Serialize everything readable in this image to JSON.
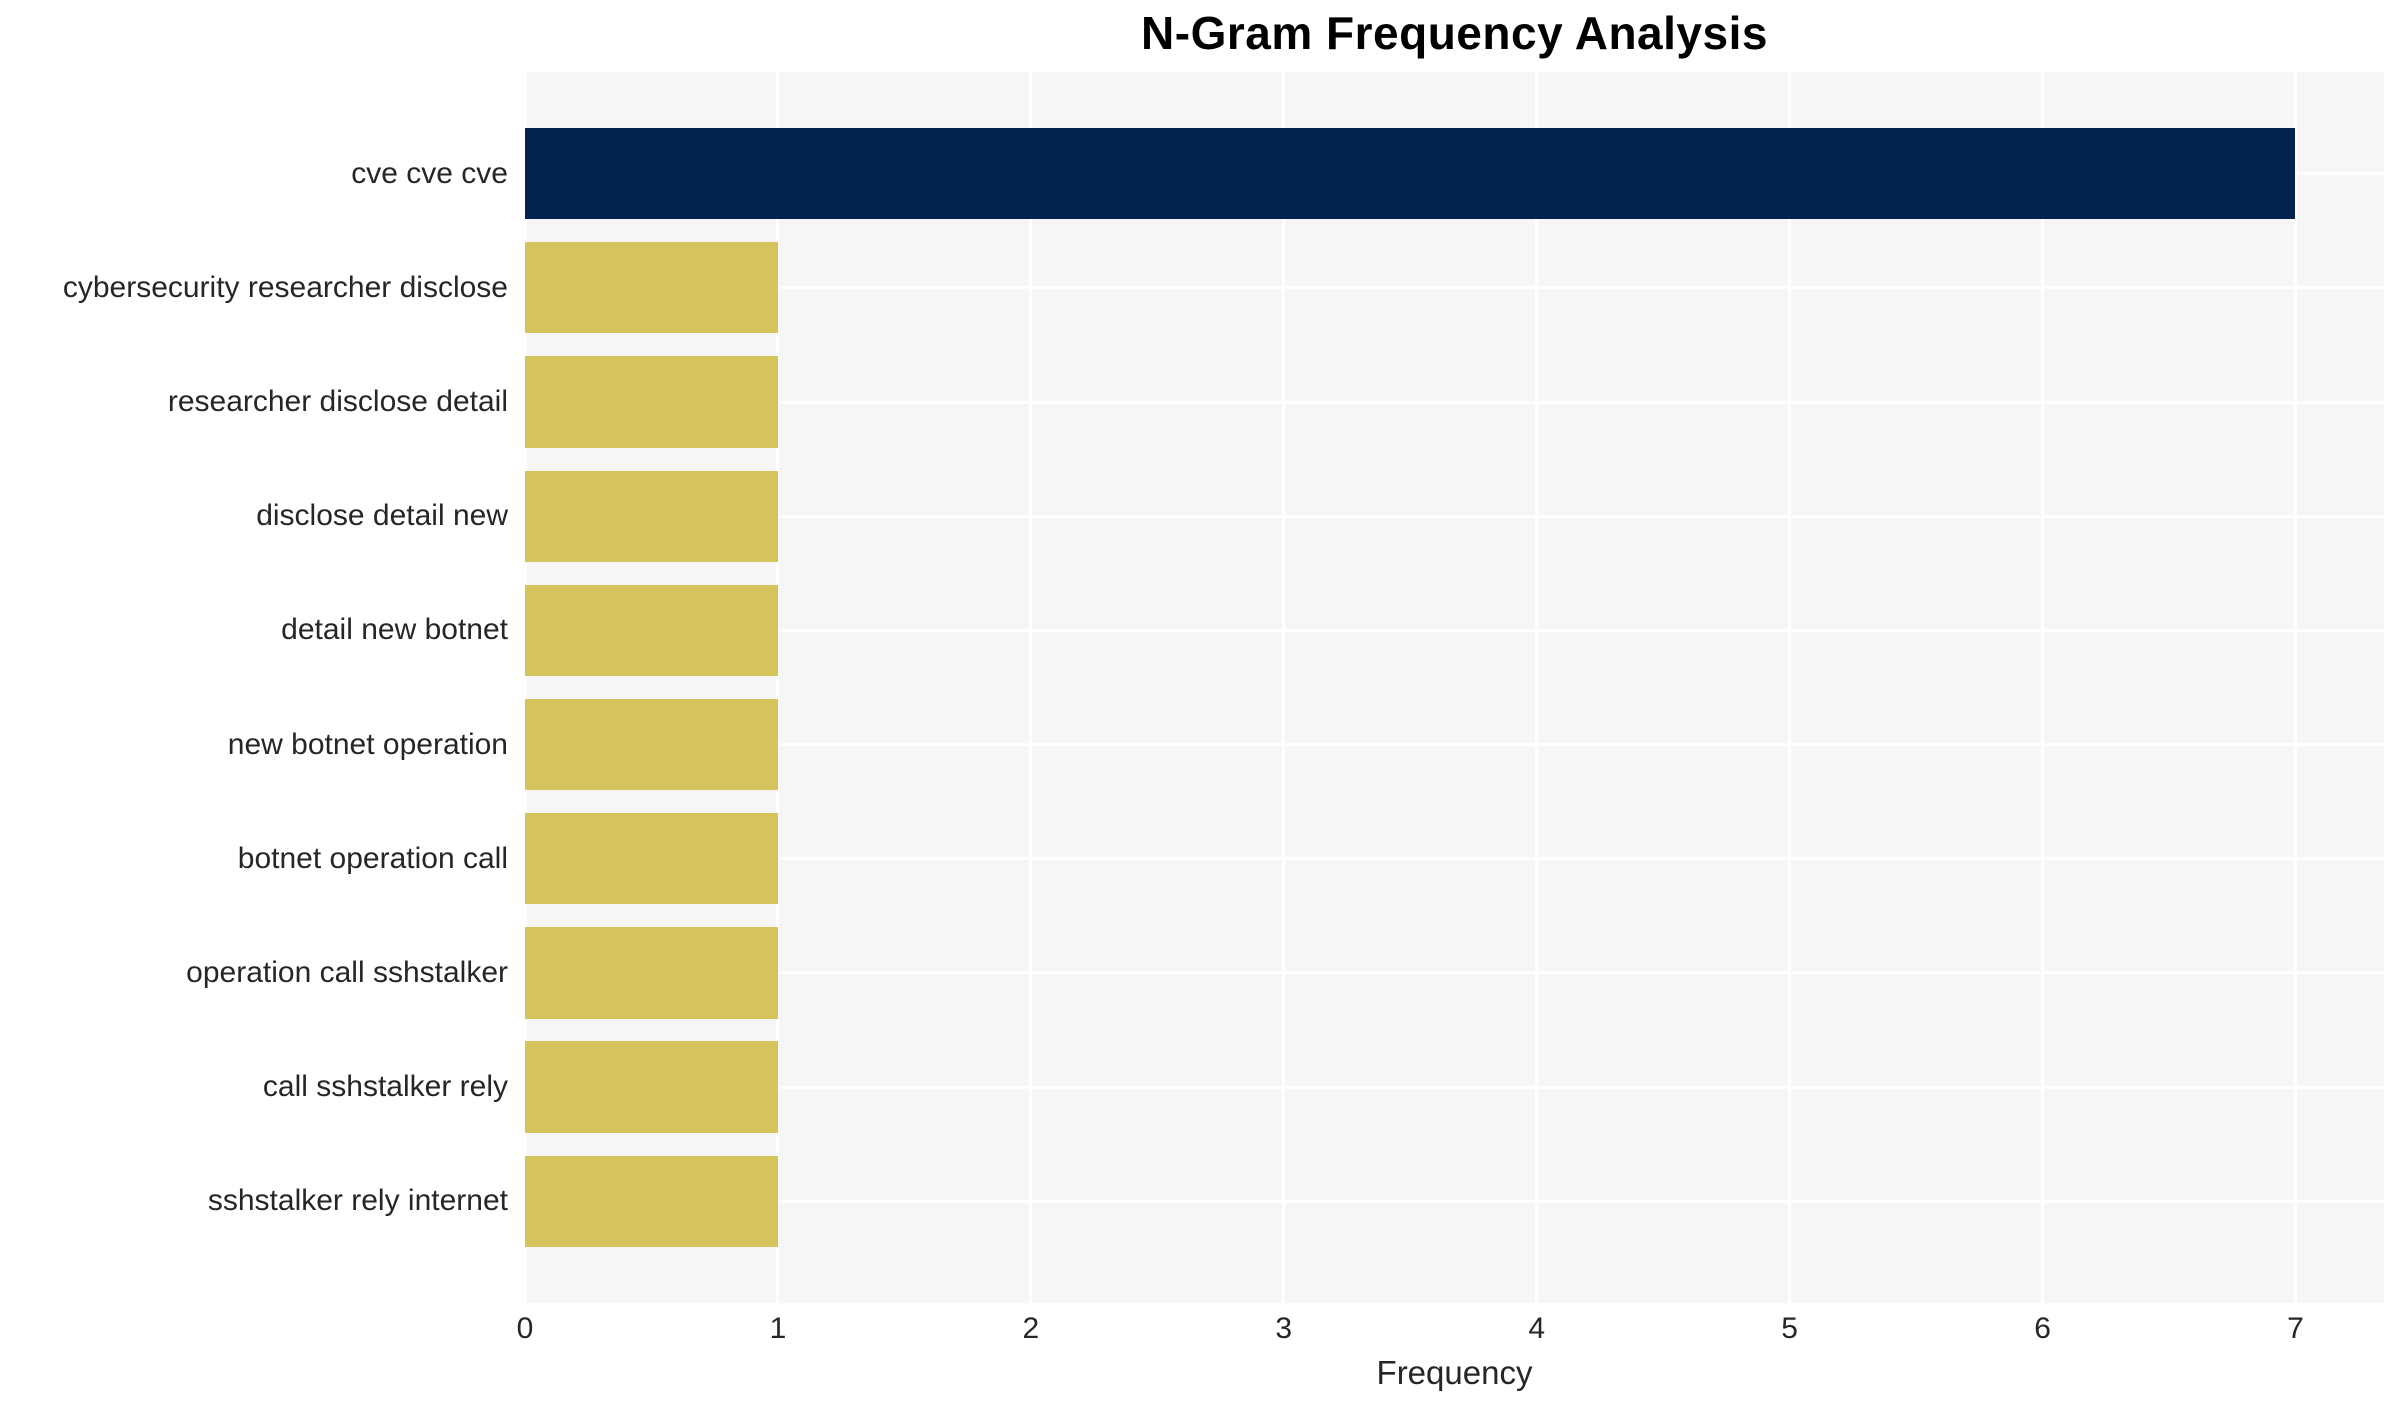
{
  "chart_data": {
    "type": "bar",
    "orientation": "horizontal",
    "title": "N-Gram Frequency Analysis",
    "xlabel": "Frequency",
    "ylabel": "",
    "categories": [
      "cve cve cve",
      "cybersecurity researcher disclose",
      "researcher disclose detail",
      "disclose detail new",
      "detail new botnet",
      "new botnet operation",
      "botnet operation call",
      "operation call sshstalker",
      "call sshstalker rely",
      "sshstalker rely internet"
    ],
    "values": [
      7,
      1,
      1,
      1,
      1,
      1,
      1,
      1,
      1,
      1
    ],
    "bar_colors": [
      "#02234d",
      "#d5c35c",
      "#d5c35c",
      "#d5c35c",
      "#d5c35c",
      "#d5c35c",
      "#d5c35c",
      "#d5c35c",
      "#d5c35c",
      "#d5c35c"
    ],
    "xticks": [
      0,
      1,
      2,
      3,
      4,
      5,
      6,
      7
    ],
    "xlim": [
      0,
      7.35
    ],
    "ylim": [
      -0.89,
      9.89
    ],
    "bar_height": 0.8,
    "grid": "on",
    "legend": "none",
    "plot_bg_color": "#f6f6f6",
    "grid_color": "#ffffff",
    "text_color": "#262626",
    "title_color": "#000000"
  }
}
